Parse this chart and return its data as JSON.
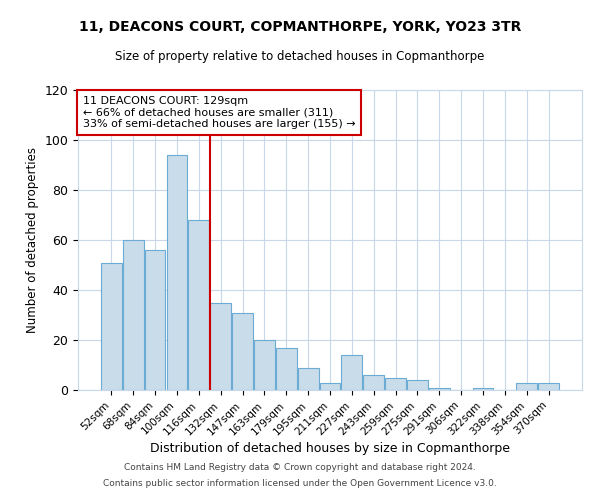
{
  "title": "11, DEACONS COURT, COPMANTHORPE, YORK, YO23 3TR",
  "subtitle": "Size of property relative to detached houses in Copmanthorpe",
  "xlabel": "Distribution of detached houses by size in Copmanthorpe",
  "ylabel": "Number of detached properties",
  "bar_labels": [
    "52sqm",
    "68sqm",
    "84sqm",
    "100sqm",
    "116sqm",
    "132sqm",
    "147sqm",
    "163sqm",
    "179sqm",
    "195sqm",
    "211sqm",
    "227sqm",
    "243sqm",
    "259sqm",
    "275sqm",
    "291sqm",
    "306sqm",
    "322sqm",
    "338sqm",
    "354sqm",
    "370sqm"
  ],
  "bar_values": [
    51,
    60,
    56,
    94,
    68,
    35,
    31,
    20,
    17,
    9,
    3,
    14,
    6,
    5,
    4,
    1,
    0,
    1,
    0,
    3,
    3
  ],
  "bar_color": "#c9dcea",
  "bar_edge_color": "#6aacd4",
  "vline_x": 4.5,
  "vline_color": "#cc0000",
  "annotation_title": "11 DEACONS COURT: 129sqm",
  "annotation_line1": "← 66% of detached houses are smaller (311)",
  "annotation_line2": "33% of semi-detached houses are larger (155) →",
  "annotation_box_color": "#ffffff",
  "annotation_border_color": "#cc0000",
  "ylim": [
    0,
    120
  ],
  "yticks": [
    0,
    20,
    40,
    60,
    80,
    100,
    120
  ],
  "footer1": "Contains HM Land Registry data © Crown copyright and database right 2024.",
  "footer2": "Contains public sector information licensed under the Open Government Licence v3.0.",
  "bg_color": "#ffffff",
  "grid_color": "#c8d8e8"
}
